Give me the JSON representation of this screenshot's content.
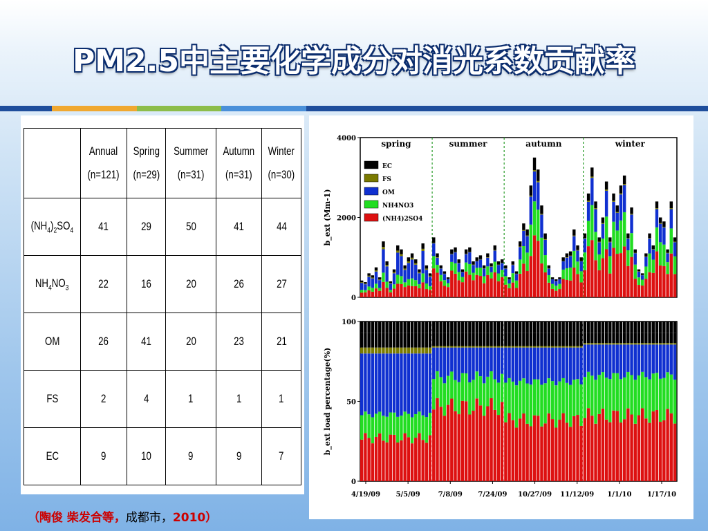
{
  "slide_title": "PM2.5中主要化学成分对消光系数贡献率",
  "accent_colors": [
    "#1f4e9c",
    "#f0a830",
    "#8cbd4a",
    "#4a90d9"
  ],
  "table": {
    "headers": [
      {
        "line1": "",
        "line2": ""
      },
      {
        "line1": "Annual",
        "line2": "(n=121)"
      },
      {
        "line1": "Spring",
        "line2": "(n=29)"
      },
      {
        "line1": "Summer",
        "line2": "(n=31)"
      },
      {
        "line1": "Autumn",
        "line2": "(n=31)"
      },
      {
        "line1": "Winter",
        "line2": "(n=30)"
      }
    ],
    "rows": [
      {
        "label": "(NH4)2SO4",
        "values": [
          "41",
          "29",
          "50",
          "41",
          "44"
        ]
      },
      {
        "label": "NH4NO3",
        "values": [
          "22",
          "16",
          "20",
          "26",
          "27"
        ]
      },
      {
        "label": "OM",
        "values": [
          "26",
          "41",
          "20",
          "23",
          "21"
        ]
      },
      {
        "label": "FS",
        "values": [
          "2",
          "4",
          "1",
          "1",
          "1"
        ]
      },
      {
        "label": "EC",
        "values": [
          "9",
          "10",
          "9",
          "9",
          "7"
        ]
      }
    ]
  },
  "chart_data": [
    {
      "type": "bar",
      "stacked": true,
      "ylabel": "b_ext (Mm-1)",
      "ylim": [
        0,
        4000
      ],
      "yticks": [
        0,
        2000,
        4000
      ],
      "seasons": [
        "spring",
        "summer",
        "autumn",
        "winter"
      ],
      "legend": [
        "EC",
        "FS",
        "OM",
        "NH4NO3",
        "(NH4)2SO4"
      ],
      "legend_position": "top-left",
      "series_colors": {
        "EC": "#000000",
        "FS": "#7a7a00",
        "OM": "#1030d0",
        "NH4NO3": "#22dd22",
        "(NH4)2SO4": "#dd1111"
      },
      "totals_by_season": {
        "spring": [
          420,
          380,
          600,
          550,
          750,
          500,
          1400,
          900,
          400,
          700,
          1300,
          1200,
          800,
          1000,
          1100,
          950,
          700,
          1350,
          800,
          600
        ],
        "summer": [
          1500,
          1100,
          800,
          650,
          500,
          1200,
          1250,
          950,
          700,
          1200,
          1250,
          900,
          1000,
          1050,
          800,
          1100,
          850,
          1300,
          900,
          950
        ],
        "autumn": [
          800,
          500,
          900,
          650,
          1400,
          1850,
          1700,
          2800,
          3500,
          3200,
          2300,
          1600,
          800,
          500,
          450,
          500,
          1000,
          1100,
          1150,
          1700,
          1300,
          1000
        ],
        "winter": [
          1600,
          2600,
          3250,
          2400,
          1500,
          2000,
          2900,
          1500,
          2600,
          2300,
          2800,
          3050,
          1600,
          2250,
          1200,
          700,
          600,
          1100,
          1600,
          1300,
          2400,
          2000,
          1900,
          1200,
          2400,
          1500
        ]
      }
    },
    {
      "type": "bar",
      "stacked": true,
      "ylabel": "b_ext load percentage(%)",
      "ylim": [
        0,
        100
      ],
      "yticks": [
        0,
        50,
        100
      ],
      "xticks": [
        "4/19/09",
        "5/5/09",
        "7/8/09",
        "7/24/09",
        "10/27/09",
        "11/12/09",
        "1/1/10",
        "1/17/10"
      ],
      "season_shares": {
        "spring": {
          "(NH4)2SO4": 29,
          "NH4NO3": 16,
          "OM": 41,
          "FS": 4,
          "EC": 10
        },
        "summer": {
          "(NH4)2SO4": 50,
          "NH4NO3": 20,
          "OM": 20,
          "FS": 1,
          "EC": 9
        },
        "autumn": {
          "(NH4)2SO4": 41,
          "NH4NO3": 26,
          "OM": 23,
          "FS": 1,
          "EC": 9
        },
        "winter": {
          "(NH4)2SO4": 44,
          "NH4NO3": 27,
          "OM": 21,
          "FS": 1,
          "EC": 7
        }
      }
    }
  ],
  "citation": {
    "authors": "（陶俊  柴发合等，",
    "place": "成都市，",
    "year": "2010）"
  }
}
